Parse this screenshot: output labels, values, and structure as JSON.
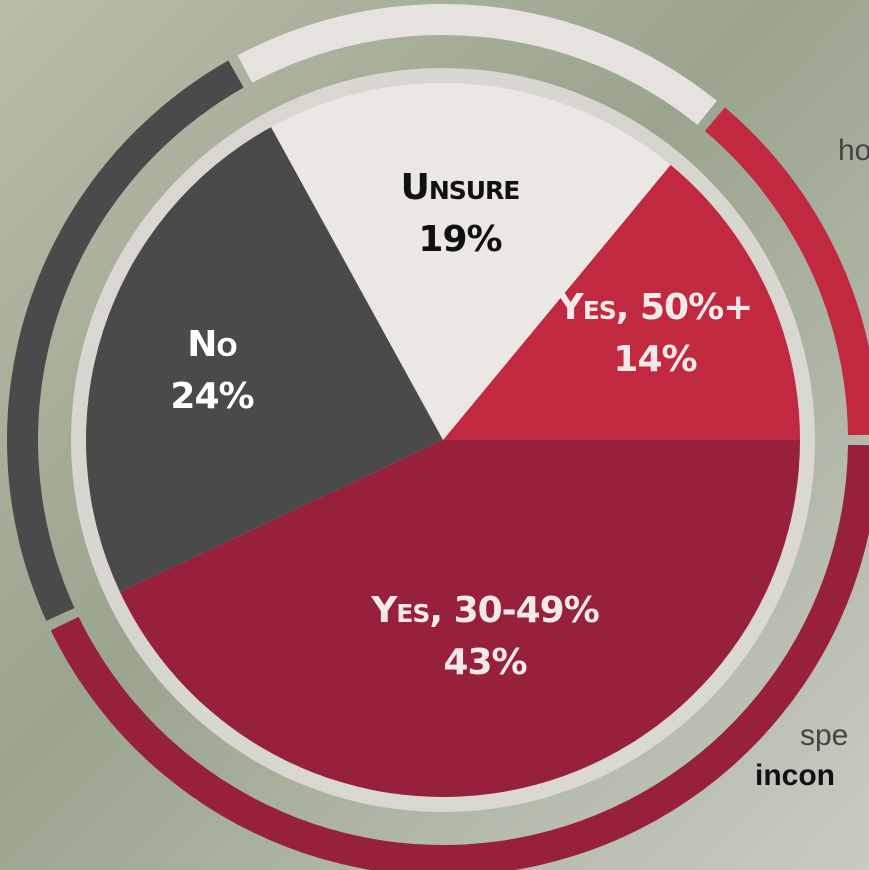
{
  "chart_data": {
    "type": "pie",
    "categories": [
      "Yes, 50%+",
      "Unsure",
      "No",
      "Yes, 30-49%"
    ],
    "values": [
      14,
      19,
      24,
      43
    ],
    "value_labels": [
      "14%",
      "19%",
      "24%",
      "43%"
    ],
    "colors": [
      "#c0293f",
      "#ebe8e3",
      "#4a4a4a",
      "#97213a"
    ],
    "label_colors": [
      "#f3e9e9",
      "#111111",
      "#ffffff",
      "#f3e9e9"
    ],
    "annotations": [
      "ho",
      "spe",
      "incon"
    ]
  }
}
